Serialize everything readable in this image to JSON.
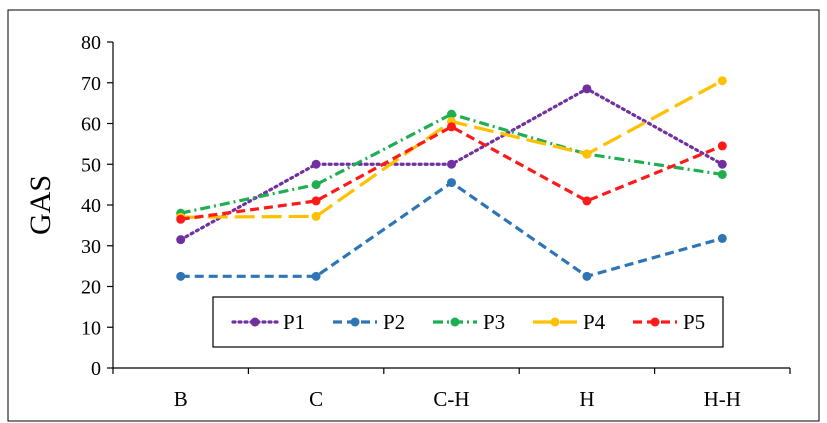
{
  "chart_data": {
    "type": "line",
    "title": "",
    "xlabel": "",
    "ylabel": "GAS",
    "ylim": [
      0,
      80
    ],
    "yticks": [
      0,
      10,
      20,
      30,
      40,
      50,
      60,
      70,
      80
    ],
    "grid": false,
    "legend_position": "bottom-inside",
    "categories": [
      "B",
      "C",
      "C-H",
      "H",
      "H-H"
    ],
    "series": [
      {
        "name": "P1",
        "color": "#7030A0",
        "dash": "dotted",
        "values": [
          31.5,
          50,
          50,
          68.5,
          50
        ]
      },
      {
        "name": "P2",
        "color": "#2E75B6",
        "dash": "dashed",
        "values": [
          22.5,
          22.5,
          45.5,
          22.5,
          31.8
        ]
      },
      {
        "name": "P3",
        "color": "#1FAF50",
        "dash": "dash-dot",
        "values": [
          38,
          45,
          62.3,
          52.5,
          47.5
        ]
      },
      {
        "name": "P4",
        "color": "#FFC000",
        "dash": "long-dash",
        "values": [
          37,
          37.2,
          60.5,
          52.5,
          70.5
        ]
      },
      {
        "name": "P5",
        "color": "#FF1A1A",
        "dash": "dashed",
        "values": [
          36.5,
          41,
          59.2,
          41,
          54.5
        ]
      }
    ]
  }
}
